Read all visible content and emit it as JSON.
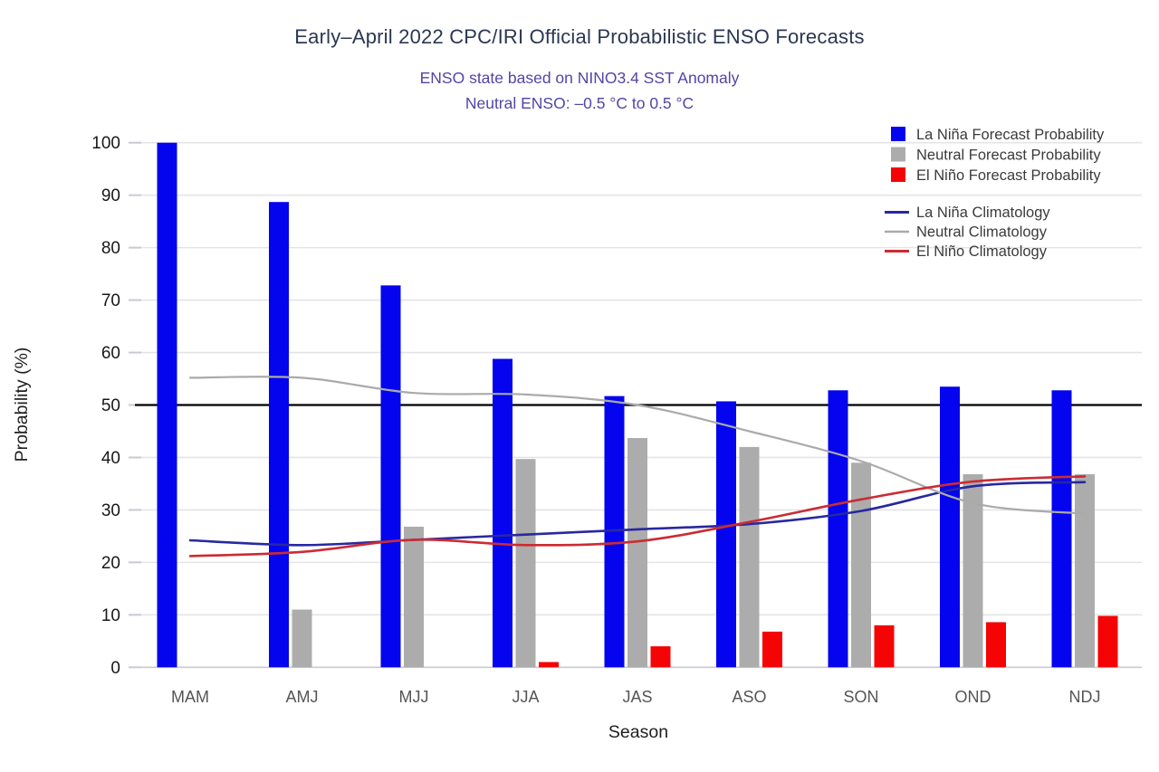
{
  "header": {
    "title": "Early–April 2022 CPC/IRI Official Probabilistic ENSO Forecasts",
    "subtitle1": "ENSO state based on NINO3.4 SST Anomaly",
    "subtitle2": "Neutral ENSO: –0.5 °C to 0.5 °C"
  },
  "chart_data": {
    "type": "bar",
    "categories": [
      "MAM",
      "AMJ",
      "MJJ",
      "JJA",
      "JAS",
      "ASO",
      "SON",
      "OND",
      "NDJ"
    ],
    "series": [
      {
        "name": "La Niña Forecast Probability",
        "kind": "bar",
        "color": "#0404EE",
        "values": [
          100,
          88.7,
          72.8,
          58.8,
          51.7,
          50.7,
          52.8,
          53.5,
          52.8
        ]
      },
      {
        "name": "Neutral Forecast Probability",
        "kind": "bar",
        "color": "#ACACAC",
        "values": [
          0,
          11,
          26.8,
          39.7,
          43.7,
          42,
          39,
          36.8,
          36.8
        ]
      },
      {
        "name": "El Niño Forecast Probability",
        "kind": "bar",
        "color": "#F40404",
        "values": [
          0,
          0,
          0,
          1,
          4,
          6.8,
          8,
          8.6,
          9.8
        ]
      },
      {
        "name": "La Niña Climatology",
        "kind": "line",
        "color": "#2828A0",
        "values": [
          24.2,
          23.3,
          24.3,
          25.3,
          26.3,
          27.3,
          29.8,
          34.5,
          35.3
        ]
      },
      {
        "name": "Neutral Climatology",
        "kind": "line",
        "color": "#AAAAAA",
        "values": [
          55.2,
          55.2,
          52.3,
          52,
          50,
          45,
          39.3,
          31.3,
          29.3
        ]
      },
      {
        "name": "El Niño Climatology",
        "kind": "line",
        "color": "#CC2B33",
        "values": [
          21.2,
          22,
          24.3,
          23.3,
          24,
          27.7,
          32,
          35.4,
          36.4
        ]
      }
    ],
    "xlabel": "Season",
    "ylabel": "Probability (%)",
    "ylim": [
      0,
      100
    ],
    "ytick_step": 10,
    "reference_line": 50,
    "grid": true,
    "legend_position": "top-right"
  }
}
